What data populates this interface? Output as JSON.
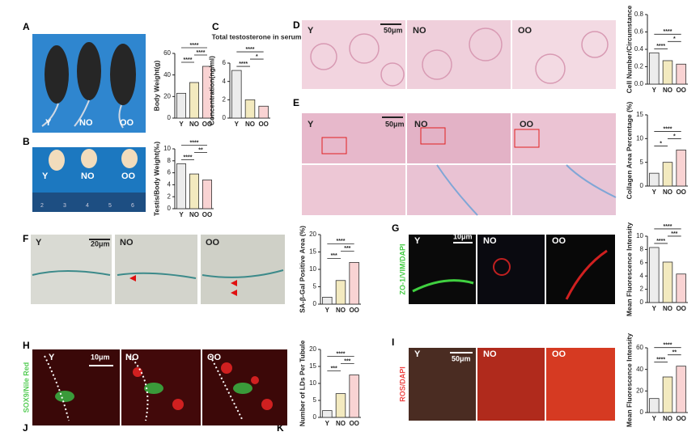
{
  "figure": {
    "letters": [
      "A",
      "B",
      "C",
      "D",
      "E",
      "F",
      "G",
      "H",
      "I",
      "J",
      "K"
    ],
    "A": {
      "groups": [
        "Y",
        "NO",
        "OO"
      ]
    },
    "B": {
      "groups": [
        "Y",
        "NO",
        "OO"
      ],
      "ruler": [
        "2",
        "3",
        "4",
        "5",
        "6"
      ]
    },
    "D": {
      "groups": [
        "Y",
        "NO",
        "OO"
      ],
      "scale": "50μm"
    },
    "E": {
      "groups": [
        "Y",
        "NO",
        "OO"
      ],
      "scale": "50μm"
    },
    "F": {
      "groups": [
        "Y",
        "NO",
        "OO"
      ],
      "scale": "20μm"
    },
    "G": {
      "groups": [
        "Y",
        "NO",
        "OO"
      ],
      "scale": "10μm",
      "stain": "ZO-1/VIM/DAPI"
    },
    "H": {
      "groups": [
        "Y",
        "NO",
        "OO"
      ],
      "scale": "10μm",
      "stain": "SOX9/Nile Red"
    },
    "I": {
      "groups": [
        "Y",
        "NO",
        "OO"
      ],
      "scale": "50μm",
      "stain": "ROS/DAPI"
    }
  },
  "chart_data": [
    {
      "type": "bar",
      "y_label": "Body Weight(g)",
      "categories": [
        "Y",
        "NO",
        "OO"
      ],
      "values": [
        23,
        33,
        48
      ],
      "colors": [
        "#ececec",
        "#f3eabf",
        "#f9d3d3"
      ],
      "ylim": [
        0,
        60
      ],
      "yticks": [
        0,
        20,
        40,
        60
      ],
      "annotations": [
        "****",
        "****",
        "****"
      ]
    },
    {
      "type": "bar",
      "y_label": "Testis/Body Weight(‰)",
      "categories": [
        "Y",
        "NO",
        "OO"
      ],
      "values": [
        7.5,
        5.8,
        4.8
      ],
      "colors": [
        "#ececec",
        "#f3eabf",
        "#f9d3d3"
      ],
      "ylim": [
        0,
        10
      ],
      "yticks": [
        0,
        2,
        4,
        6,
        8,
        10
      ],
      "annotations": [
        "****",
        "****",
        "**"
      ]
    },
    {
      "type": "bar",
      "title": "Total testosterone in serum",
      "y_label": "Concentration(ng/ml)",
      "categories": [
        "Y",
        "NO",
        "OO"
      ],
      "values": [
        5.2,
        2.0,
        1.3
      ],
      "colors": [
        "#ececec",
        "#f3eabf",
        "#f9d3d3"
      ],
      "ylim": [
        0,
        6
      ],
      "yticks": [
        0,
        2,
        4,
        6
      ],
      "annotations": [
        "****",
        "****",
        "*"
      ]
    },
    {
      "type": "bar",
      "y_label": "Cell Number/Circumstance",
      "categories": [
        "Y",
        "NO",
        "OO"
      ],
      "values": [
        0.36,
        0.27,
        0.23
      ],
      "colors": [
        "#ececec",
        "#f3eabf",
        "#f9d3d3"
      ],
      "ylim": [
        0,
        0.8
      ],
      "yticks": [
        {
          "value": 0,
          "label": "0.0"
        },
        0.2,
        0.4,
        0.6,
        0.8
      ],
      "annotations": [
        "****",
        "****",
        "*"
      ]
    },
    {
      "type": "bar",
      "y_label": "Collagen Area Percentage (%)",
      "categories": [
        "Y",
        "NO",
        "OO"
      ],
      "values": [
        2.7,
        5,
        7.6
      ],
      "colors": [
        "#ececec",
        "#f3eabf",
        "#f9d3d3"
      ],
      "ylim": [
        0,
        15
      ],
      "yticks": [
        0,
        5,
        10,
        15
      ],
      "annotations": [
        "*",
        "****",
        "*"
      ]
    },
    {
      "type": "bar",
      "y_label": "SA-β-Gal Positive Area (%)",
      "categories": [
        "Y",
        "NO",
        "OO"
      ],
      "values": [
        2,
        6.8,
        12
      ],
      "colors": [
        "#ececec",
        "#f3eabf",
        "#f9d3d3"
      ],
      "ylim": [
        0,
        20
      ],
      "yticks": [
        0,
        5,
        10,
        15,
        20
      ],
      "annotations": [
        "***",
        "****",
        "***"
      ]
    },
    {
      "type": "bar",
      "y_label": "Mean Fluorescence Intensity",
      "categories": [
        "Y",
        "NO",
        "OO"
      ],
      "values": [
        8.3,
        6.1,
        4.3
      ],
      "colors": [
        "#ececec",
        "#f3eabf",
        "#f9d3d3"
      ],
      "ylim": [
        0,
        10
      ],
      "yticks": [
        0,
        2,
        4,
        6,
        8,
        10
      ],
      "annotations": [
        "****",
        "****",
        "***"
      ]
    },
    {
      "type": "bar",
      "y_label": "Number of LDs Per Tubule",
      "categories": [
        "Y",
        "NO",
        "OO"
      ],
      "values": [
        2,
        7,
        12.5
      ],
      "colors": [
        "#ececec",
        "#f3eabf",
        "#f9d3d3"
      ],
      "ylim": [
        0,
        20
      ],
      "yticks": [
        0,
        5,
        10,
        15,
        20
      ],
      "annotations": [
        "***",
        "****",
        "***"
      ]
    },
    {
      "type": "bar",
      "y_label": "Mean Fluorescence Intensity",
      "categories": [
        "Y",
        "NO",
        "OO"
      ],
      "values": [
        13,
        33,
        43
      ],
      "colors": [
        "#ececec",
        "#f3eabf",
        "#f9d3d3"
      ],
      "ylim": [
        0,
        60
      ],
      "yticks": [
        0,
        20,
        40,
        60
      ],
      "annotations": [
        "****",
        "****",
        "**"
      ]
    }
  ]
}
